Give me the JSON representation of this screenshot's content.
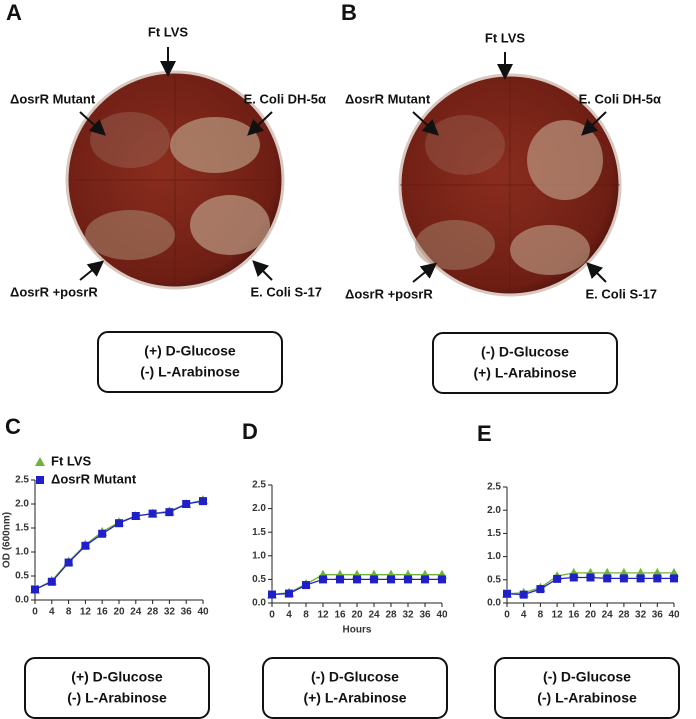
{
  "panels": [
    {
      "label": "A",
      "annotations": [
        "Ft LVS",
        "ΔosrR Mutant",
        "E. Coli DH-5α",
        "ΔosrR +posrR",
        "E. Coli S-17"
      ],
      "conditions": [
        "(+) D-Glucose",
        "(-) L-Arabinose"
      ]
    },
    {
      "label": "B",
      "annotations": [
        "Ft LVS",
        "ΔosrR Mutant",
        "E. Coli DH-5α",
        "ΔosrR +posrR",
        "E. Coli S-17"
      ],
      "conditions": [
        "(-) D-Glucose",
        "(+) L-Arabinose"
      ]
    }
  ],
  "chart_data": [
    {
      "type": "line",
      "panel_label": "C",
      "ylabel": "OD (600nm)",
      "x": [
        0,
        4,
        8,
        12,
        16,
        20,
        24,
        28,
        32,
        36,
        40
      ],
      "series": [
        {
          "name": "Ft LVS",
          "color": "#70b33a",
          "marker": "triangle",
          "values": [
            0.22,
            0.4,
            0.8,
            1.15,
            1.42,
            1.62,
            1.75,
            1.8,
            1.85,
            2.0,
            2.08
          ]
        },
        {
          "name": "ΔosrR Mutant",
          "color": "#2020c8",
          "marker": "square",
          "values": [
            0.22,
            0.38,
            0.78,
            1.13,
            1.38,
            1.6,
            1.75,
            1.8,
            1.83,
            2.0,
            2.06
          ]
        }
      ],
      "xlim": [
        0,
        40
      ],
      "ylim": [
        0,
        2.5
      ],
      "xticks": [
        0,
        4,
        8,
        12,
        16,
        20,
        24,
        28,
        32,
        36,
        40
      ],
      "yticks": [
        {
          "value": 0,
          "label": "0.0"
        },
        {
          "value": 0.5,
          "label": "0.5"
        },
        {
          "value": 1,
          "label": "1.0"
        },
        {
          "value": 1.5,
          "label": "1.5"
        },
        {
          "value": 2,
          "label": "2.0"
        },
        {
          "value": 2.5,
          "label": "2.5"
        }
      ],
      "conditions": [
        "(+) D-Glucose",
        "(-) L-Arabinose"
      ]
    },
    {
      "type": "line",
      "panel_label": "D",
      "xlabel": "Hours",
      "x": [
        0,
        4,
        8,
        12,
        16,
        20,
        24,
        28,
        32,
        36,
        40
      ],
      "series": [
        {
          "color": "#70b33a",
          "marker": "triangle",
          "values": [
            0.18,
            0.22,
            0.4,
            0.6,
            0.6,
            0.6,
            0.6,
            0.6,
            0.6,
            0.6,
            0.6
          ]
        },
        {
          "color": "#2020c8",
          "marker": "square",
          "values": [
            0.18,
            0.2,
            0.38,
            0.5,
            0.5,
            0.5,
            0.5,
            0.5,
            0.5,
            0.5,
            0.5
          ]
        }
      ],
      "xlim": [
        0,
        40
      ],
      "ylim": [
        0,
        2.5
      ],
      "xticks": [
        0,
        4,
        8,
        12,
        16,
        20,
        24,
        28,
        32,
        36,
        40
      ],
      "yticks": [
        {
          "value": 0,
          "label": "0.0"
        },
        {
          "value": 0.5,
          "label": "0.5"
        },
        {
          "value": 1,
          "label": "1.0"
        },
        {
          "value": 1.5,
          "label": "1.5"
        },
        {
          "value": 2,
          "label": "2.0"
        },
        {
          "value": 2.5,
          "label": "2.5"
        }
      ],
      "conditions": [
        "(-) D-Glucose",
        "(+) L-Arabinose"
      ]
    },
    {
      "type": "line",
      "panel_label": "E",
      "x": [
        0,
        4,
        8,
        12,
        16,
        20,
        24,
        28,
        32,
        36,
        40
      ],
      "series": [
        {
          "color": "#70b33a",
          "marker": "triangle",
          "values": [
            0.2,
            0.22,
            0.33,
            0.58,
            0.65,
            0.65,
            0.65,
            0.65,
            0.65,
            0.65,
            0.65
          ]
        },
        {
          "color": "#2020c8",
          "marker": "square",
          "values": [
            0.2,
            0.18,
            0.3,
            0.52,
            0.55,
            0.55,
            0.53,
            0.53,
            0.53,
            0.53,
            0.53
          ]
        }
      ],
      "xlim": [
        0,
        40
      ],
      "ylim": [
        0,
        2.5
      ],
      "xticks": [
        0,
        4,
        8,
        12,
        16,
        20,
        24,
        28,
        32,
        36,
        40
      ],
      "yticks": [
        {
          "value": 0,
          "label": "0.0"
        },
        {
          "value": 0.5,
          "label": "0.5"
        },
        {
          "value": 1,
          "label": "1.0"
        },
        {
          "value": 1.5,
          "label": "1.5"
        },
        {
          "value": 2,
          "label": "2.0"
        },
        {
          "value": 2.5,
          "label": "2.5"
        }
      ],
      "conditions": [
        "(-) D-Glucose",
        "(-) L-Arabinose"
      ]
    }
  ]
}
